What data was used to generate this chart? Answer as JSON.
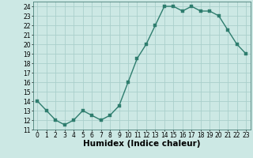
{
  "x": [
    0,
    1,
    2,
    3,
    4,
    5,
    6,
    7,
    8,
    9,
    10,
    11,
    12,
    13,
    14,
    15,
    16,
    17,
    18,
    19,
    20,
    21,
    22,
    23
  ],
  "y": [
    14,
    13,
    12,
    11.5,
    12,
    13,
    12.5,
    12,
    12.5,
    13.5,
    16,
    18.5,
    20,
    22,
    24,
    24,
    23.5,
    24,
    23.5,
    23.5,
    23,
    21.5,
    20,
    19
  ],
  "xlabel": "Humidex (Indice chaleur)",
  "ylim": [
    11,
    24.5
  ],
  "xlim": [
    -0.5,
    23.5
  ],
  "yticks": [
    11,
    12,
    13,
    14,
    15,
    16,
    17,
    18,
    19,
    20,
    21,
    22,
    23,
    24
  ],
  "xticks": [
    0,
    1,
    2,
    3,
    4,
    5,
    6,
    7,
    8,
    9,
    10,
    11,
    12,
    13,
    14,
    15,
    16,
    17,
    18,
    19,
    20,
    21,
    22,
    23
  ],
  "line_color": "#2e7d6e",
  "marker_color": "#2e7d6e",
  "bg_color": "#cce8e4",
  "grid_color": "#aacfcb",
  "tick_label_fontsize": 5.5,
  "xlabel_fontsize": 7.5,
  "marker_size": 2.2,
  "linewidth": 1.0
}
